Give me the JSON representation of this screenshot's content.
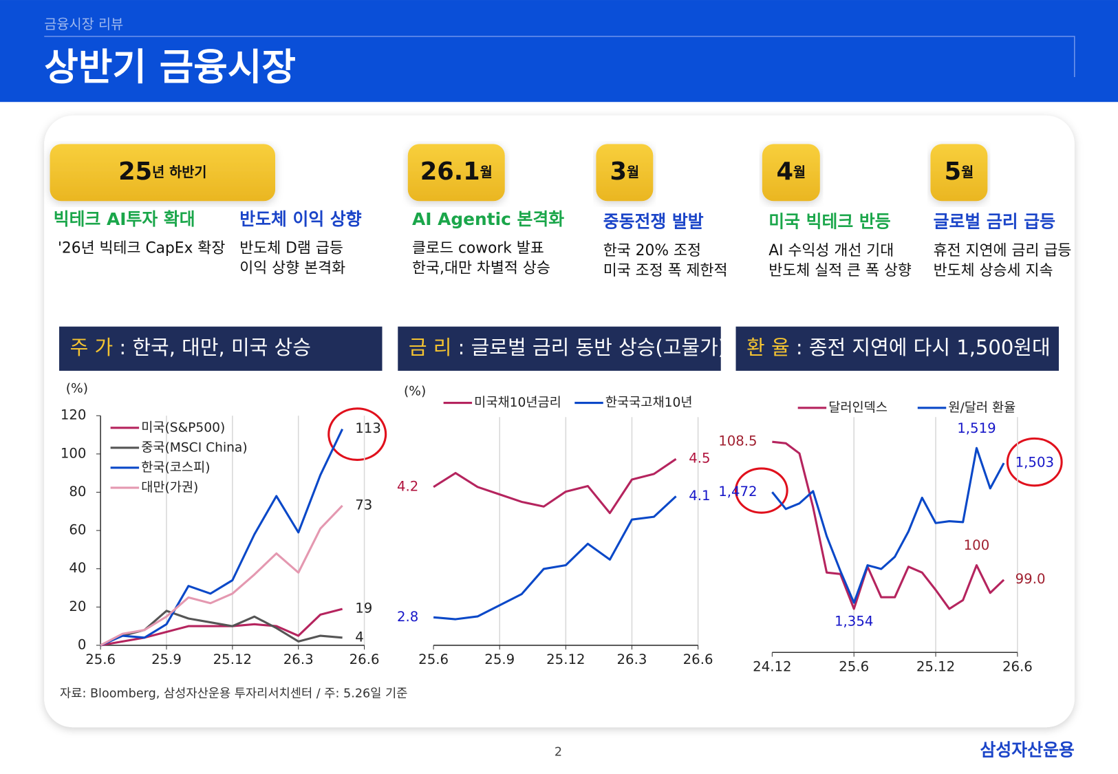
{
  "header": {
    "section": "금융시장 리뷰",
    "title": "상반기 금융시장"
  },
  "timeline": [
    {
      "period": {
        "number": "25",
        "unit": "년 하반기"
      },
      "topics": [
        {
          "title": "빅테크 AI투자 확대",
          "color": "#1aa64a",
          "lines": [
            "'26년 빅테크 CapEx 확장"
          ]
        },
        {
          "title": "반도체 이익 상향",
          "color": "#1a44c8",
          "lines": [
            "반도체 D램 급등",
            "이익 상향 본격화"
          ]
        }
      ]
    },
    {
      "period": {
        "number": "26.1",
        "unit": "월"
      },
      "topics": [
        {
          "title": "AI Agentic 본격화",
          "color": "#1aa64a",
          "lines": [
            "클로드 cowork 발표",
            "한국,대만 차별적 상승"
          ]
        }
      ]
    },
    {
      "period": {
        "number": "3",
        "unit": "월"
      },
      "topics": [
        {
          "title": "중동전쟁 발발",
          "color": "#1a44c8",
          "lines": [
            "한국 20% 조정",
            "미국 조정 폭 제한적"
          ]
        }
      ]
    },
    {
      "period": {
        "number": "4",
        "unit": "월"
      },
      "topics": [
        {
          "title": "미국 빅테크 반등",
          "color": "#1aa64a",
          "lines": [
            "AI 수익성 개선 기대",
            "반도체 실적 큰 폭 상향"
          ]
        }
      ]
    },
    {
      "period": {
        "number": "5",
        "unit": "월"
      },
      "topics": [
        {
          "title": "글로벌 금리 급등",
          "color": "#1a44c8",
          "lines": [
            "휴전 지연에 금리 급등",
            "반도체 상승세 지속"
          ]
        }
      ]
    }
  ],
  "chart_data": [
    {
      "type": "line",
      "title": {
        "label": "주 가",
        "text": " : 한국, 대만, 미국 상승"
      },
      "ylabel": "(%)",
      "x": [
        0,
        1,
        2,
        3,
        4,
        5,
        6,
        7,
        8,
        9,
        10,
        11
      ],
      "xlim": [
        0,
        12
      ],
      "xticks": [
        {
          "value": 0,
          "label": "25.6"
        },
        {
          "value": 3,
          "label": "25.9"
        },
        {
          "value": 6,
          "label": "25.12"
        },
        {
          "value": 9,
          "label": "26.3"
        },
        {
          "value": 12,
          "label": "26.6"
        }
      ],
      "ylim": [
        0,
        120
      ],
      "yticks": [
        0,
        20,
        40,
        60,
        80,
        100,
        120
      ],
      "grid_x": true,
      "legend": "upper left",
      "data_labels": "last",
      "series": [
        {
          "name": "미국(S&P500)",
          "color": "#b5245e",
          "values": [
            0,
            2,
            4,
            7,
            10,
            10,
            10,
            11,
            10,
            5,
            16,
            19
          ]
        },
        {
          "name": "중국(MSCI China)",
          "color": "#555555",
          "values": [
            0,
            5,
            8,
            18,
            14,
            12,
            10,
            15,
            9,
            2,
            5,
            4
          ]
        },
        {
          "name": "한국(코스피)",
          "color": "#0a48c8",
          "values": [
            0,
            5,
            4,
            11,
            31,
            27,
            34,
            58,
            78,
            59,
            89,
            113
          ]
        },
        {
          "name": "대만(가권)",
          "color": "#e498b0",
          "values": [
            0,
            6,
            8,
            15,
            25,
            22,
            27,
            37,
            48,
            38,
            61,
            73
          ]
        }
      ]
    },
    {
      "type": "line",
      "title": {
        "label": "금 리",
        "text": " : 글로벌 금리 동반 상승(고물가)"
      },
      "ylabel": "(%)",
      "x": [
        0,
        1,
        2,
        3,
        4,
        5,
        6,
        7,
        8,
        9,
        10,
        11
      ],
      "xlim": [
        0,
        12
      ],
      "xticks": [
        {
          "value": 0,
          "label": "25.6"
        },
        {
          "value": 3,
          "label": "25.9"
        },
        {
          "value": 6,
          "label": "25.12"
        },
        {
          "value": 9,
          "label": "26.3"
        },
        {
          "value": 12,
          "label": "26.6"
        }
      ],
      "ylim": [
        2.5,
        4.95
      ],
      "grid_x": true,
      "legend": "top",
      "data_labels": "ends",
      "series": [
        {
          "name": "미국채10년금리",
          "color": "#b5245e",
          "label_color": "#b0123c",
          "values": [
            4.2,
            4.35,
            4.2,
            4.12,
            4.04,
            3.99,
            4.15,
            4.21,
            3.92,
            4.28,
            4.34,
            4.5
          ]
        },
        {
          "name": "한국국고채10년",
          "color": "#0a48c8",
          "label_color": "#1515c8",
          "values": [
            2.8,
            2.78,
            2.81,
            2.93,
            3.05,
            3.32,
            3.36,
            3.59,
            3.42,
            3.85,
            3.88,
            4.1
          ]
        }
      ]
    },
    {
      "type": "line",
      "title": {
        "label": "환 율",
        "text": " : 종전 지연에 다시 1,500원대"
      },
      "x": [
        0,
        1,
        2,
        3,
        4,
        5,
        6,
        7,
        8,
        9,
        10,
        11,
        12,
        13,
        14,
        15,
        16,
        17
      ],
      "xlim": [
        0,
        18
      ],
      "xticks": [
        {
          "value": 0,
          "label": "24.12"
        },
        {
          "value": 6,
          "label": "25.6"
        },
        {
          "value": 12,
          "label": "25.12"
        },
        {
          "value": 18,
          "label": "26.6"
        }
      ],
      "ylim": [
        94,
        110.2
      ],
      "y2lim": [
        1301,
        1552
      ],
      "grid_x": true,
      "legend": "top",
      "data_labels": "labeled",
      "series": [
        {
          "name": "달러인덱스",
          "color": "#b5245e",
          "label_color": "#a02030",
          "values": [
            108.5,
            108.4,
            107.7,
            104.0,
            99.5,
            99.4,
            97.0,
            99.9,
            97.8,
            97.8,
            99.9,
            99.5,
            98.3,
            97.0,
            97.6,
            100,
            98.1,
            99.0
          ],
          "value_labels": [
            "108.5",
            null,
            null,
            null,
            null,
            null,
            null,
            null,
            null,
            null,
            null,
            null,
            null,
            null,
            null,
            "100",
            null,
            "99.0"
          ]
        },
        {
          "name": "원/달러 환율",
          "color": "#0a48c8",
          "label_color": "#1515c8",
          "axis": "y2",
          "values": [
            1472,
            1454,
            1460,
            1473,
            1425,
            1388,
            1354,
            1394,
            1390,
            1403,
            1430,
            1466,
            1439,
            1441,
            1440,
            1519,
            1476,
            1503
          ],
          "value_labels": [
            "1,472",
            null,
            null,
            null,
            null,
            null,
            "1,354",
            null,
            null,
            null,
            null,
            null,
            null,
            null,
            null,
            "1,519",
            null,
            "1,503"
          ]
        }
      ]
    }
  ],
  "source": "자료: Bloomberg, 삼성자산운용 투자리서치센터 / 주: 5.26일 기준",
  "page_number": "2",
  "logo": "삼성자산운용"
}
